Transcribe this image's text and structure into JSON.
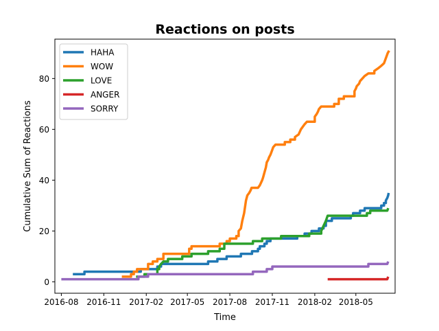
{
  "chart_data": {
    "type": "line",
    "title": "Reactions on posts",
    "xlabel": "Time",
    "ylabel": "Cumulative Sum of Reactions",
    "x_ticks": [
      "2016-08",
      "2016-11",
      "2017-02",
      "2017-05",
      "2017-08",
      "2017-11",
      "2018-02",
      "2018-05"
    ],
    "y_ticks": [
      0,
      20,
      40,
      60,
      80
    ],
    "xlim": [
      "2016-07-18",
      "2018-07-25"
    ],
    "ylim": [
      -4.5,
      95.5
    ],
    "grid": false,
    "legend_position": "top-left",
    "series": [
      {
        "name": "HAHA",
        "color": "#1f77b4",
        "points": [
          [
            "2016-08-26",
            3
          ],
          [
            "2016-09-20",
            3
          ],
          [
            "2016-09-20",
            4
          ],
          [
            "2017-01-20",
            4
          ],
          [
            "2017-01-20",
            5
          ],
          [
            "2017-02-25",
            5
          ],
          [
            "2017-02-25",
            6
          ],
          [
            "2017-03-05",
            6
          ],
          [
            "2017-03-05",
            7
          ],
          [
            "2017-06-15",
            7
          ],
          [
            "2017-06-15",
            8
          ],
          [
            "2017-07-05",
            8
          ],
          [
            "2017-07-05",
            9
          ],
          [
            "2017-07-25",
            9
          ],
          [
            "2017-07-25",
            10
          ],
          [
            "2017-08-25",
            10
          ],
          [
            "2017-08-25",
            11
          ],
          [
            "2017-09-18",
            11
          ],
          [
            "2017-09-18",
            12
          ],
          [
            "2017-10-01",
            12
          ],
          [
            "2017-10-01",
            13
          ],
          [
            "2017-10-05",
            13
          ],
          [
            "2017-10-05",
            14
          ],
          [
            "2017-10-15",
            14
          ],
          [
            "2017-10-15",
            15
          ],
          [
            "2017-10-20",
            15
          ],
          [
            "2017-10-20",
            16
          ],
          [
            "2017-10-28",
            16
          ],
          [
            "2017-10-28",
            17
          ],
          [
            "2017-12-25",
            17
          ],
          [
            "2017-12-25",
            18
          ],
          [
            "2018-01-10",
            18
          ],
          [
            "2018-01-10",
            19
          ],
          [
            "2018-01-25",
            19
          ],
          [
            "2018-01-25",
            20
          ],
          [
            "2018-02-10",
            20
          ],
          [
            "2018-02-10",
            21
          ],
          [
            "2018-02-20",
            21
          ],
          [
            "2018-02-20",
            22
          ],
          [
            "2018-02-25",
            22
          ],
          [
            "2018-02-25",
            24
          ],
          [
            "2018-03-10",
            24
          ],
          [
            "2018-03-10",
            25
          ],
          [
            "2018-04-20",
            25
          ],
          [
            "2018-04-20",
            26
          ],
          [
            "2018-04-25",
            26
          ],
          [
            "2018-04-25",
            27
          ],
          [
            "2018-05-10",
            27
          ],
          [
            "2018-05-10",
            28
          ],
          [
            "2018-05-20",
            28
          ],
          [
            "2018-05-20",
            29
          ],
          [
            "2018-06-25",
            29
          ],
          [
            "2018-06-25",
            30
          ],
          [
            "2018-07-01",
            30
          ],
          [
            "2018-07-01",
            31
          ],
          [
            "2018-07-05",
            31
          ],
          [
            "2018-07-05",
            32
          ],
          [
            "2018-07-08",
            33
          ],
          [
            "2018-07-10",
            34
          ],
          [
            "2018-07-11",
            35
          ]
        ]
      },
      {
        "name": "WOW",
        "color": "#ff7f0e",
        "points": [
          [
            "2016-12-10",
            2
          ],
          [
            "2016-12-30",
            2
          ],
          [
            "2016-12-30",
            3
          ],
          [
            "2017-01-05",
            3
          ],
          [
            "2017-01-05",
            4
          ],
          [
            "2017-01-12",
            4
          ],
          [
            "2017-01-12",
            5
          ],
          [
            "2017-02-05",
            5
          ],
          [
            "2017-02-05",
            7
          ],
          [
            "2017-02-15",
            7
          ],
          [
            "2017-02-15",
            8
          ],
          [
            "2017-02-25",
            8
          ],
          [
            "2017-02-25",
            9
          ],
          [
            "2017-03-10",
            9
          ],
          [
            "2017-03-10",
            11
          ],
          [
            "2017-05-05",
            11
          ],
          [
            "2017-05-05",
            13
          ],
          [
            "2017-05-10",
            13
          ],
          [
            "2017-05-10",
            14
          ],
          [
            "2017-07-10",
            14
          ],
          [
            "2017-07-10",
            15
          ],
          [
            "2017-07-25",
            15
          ],
          [
            "2017-07-25",
            16
          ],
          [
            "2017-08-01",
            16
          ],
          [
            "2017-08-01",
            17
          ],
          [
            "2017-08-15",
            17
          ],
          [
            "2017-08-15",
            18
          ],
          [
            "2017-08-20",
            18
          ],
          [
            "2017-08-20",
            20
          ],
          [
            "2017-08-25",
            21
          ],
          [
            "2017-08-28",
            24
          ],
          [
            "2017-09-01",
            27
          ],
          [
            "2017-09-05",
            32
          ],
          [
            "2017-09-08",
            34
          ],
          [
            "2017-09-12",
            35
          ],
          [
            "2017-09-15",
            36
          ],
          [
            "2017-09-17",
            37
          ],
          [
            "2017-10-01",
            37
          ],
          [
            "2017-10-05",
            38
          ],
          [
            "2017-10-10",
            40
          ],
          [
            "2017-10-12",
            41
          ],
          [
            "2017-10-15",
            43
          ],
          [
            "2017-10-18",
            45
          ],
          [
            "2017-10-20",
            47
          ],
          [
            "2017-10-23",
            48
          ],
          [
            "2017-10-25",
            49
          ],
          [
            "2017-10-28",
            50
          ],
          [
            "2017-11-01",
            52
          ],
          [
            "2017-11-03",
            53
          ],
          [
            "2017-11-08",
            54
          ],
          [
            "2017-11-28",
            54
          ],
          [
            "2017-11-28",
            55
          ],
          [
            "2017-12-10",
            55
          ],
          [
            "2017-12-10",
            56
          ],
          [
            "2017-12-20",
            56
          ],
          [
            "2017-12-20",
            57
          ],
          [
            "2017-12-28",
            58
          ],
          [
            "2018-01-02",
            60
          ],
          [
            "2018-01-10",
            62
          ],
          [
            "2018-01-15",
            63
          ],
          [
            "2018-02-01",
            63
          ],
          [
            "2018-02-01",
            65
          ],
          [
            "2018-02-05",
            66
          ],
          [
            "2018-02-08",
            67
          ],
          [
            "2018-02-10",
            68
          ],
          [
            "2018-02-15",
            69
          ],
          [
            "2018-03-15",
            69
          ],
          [
            "2018-03-15",
            70
          ],
          [
            "2018-03-25",
            70
          ],
          [
            "2018-03-25",
            72
          ],
          [
            "2018-04-05",
            72
          ],
          [
            "2018-04-05",
            73
          ],
          [
            "2018-04-28",
            73
          ],
          [
            "2018-04-28",
            75
          ],
          [
            "2018-05-01",
            76
          ],
          [
            "2018-05-03",
            77
          ],
          [
            "2018-05-08",
            78
          ],
          [
            "2018-05-10",
            79
          ],
          [
            "2018-05-15",
            80
          ],
          [
            "2018-05-20",
            81
          ],
          [
            "2018-05-28",
            82
          ],
          [
            "2018-06-10",
            82
          ],
          [
            "2018-06-10",
            83
          ],
          [
            "2018-06-18",
            84
          ],
          [
            "2018-06-25",
            85
          ],
          [
            "2018-07-01",
            86
          ],
          [
            "2018-07-03",
            87
          ],
          [
            "2018-07-05",
            88
          ],
          [
            "2018-07-07",
            89
          ],
          [
            "2018-07-09",
            90
          ],
          [
            "2018-07-12",
            91
          ]
        ]
      },
      {
        "name": "LOVE",
        "color": "#2ca02c",
        "points": [
          [
            "2017-01-10",
            2
          ],
          [
            "2017-01-28",
            2
          ],
          [
            "2017-01-28",
            3
          ],
          [
            "2017-02-25",
            3
          ],
          [
            "2017-02-25",
            5
          ],
          [
            "2017-03-01",
            5
          ],
          [
            "2017-03-01",
            6
          ],
          [
            "2017-03-05",
            7
          ],
          [
            "2017-03-10",
            8
          ],
          [
            "2017-03-20",
            8
          ],
          [
            "2017-03-20",
            9
          ],
          [
            "2017-04-20",
            9
          ],
          [
            "2017-04-20",
            10
          ],
          [
            "2017-05-10",
            10
          ],
          [
            "2017-05-10",
            11
          ],
          [
            "2017-06-15",
            11
          ],
          [
            "2017-06-15",
            12
          ],
          [
            "2017-07-10",
            12
          ],
          [
            "2017-07-10",
            13
          ],
          [
            "2017-07-20",
            13
          ],
          [
            "2017-07-20",
            15
          ],
          [
            "2017-09-20",
            15
          ],
          [
            "2017-09-20",
            16
          ],
          [
            "2017-10-10",
            16
          ],
          [
            "2017-10-10",
            17
          ],
          [
            "2017-11-20",
            17
          ],
          [
            "2017-11-20",
            18
          ],
          [
            "2018-01-20",
            18
          ],
          [
            "2018-01-20",
            19
          ],
          [
            "2018-02-15",
            19
          ],
          [
            "2018-02-15",
            20
          ],
          [
            "2018-02-20",
            22
          ],
          [
            "2018-02-25",
            24
          ],
          [
            "2018-03-01",
            26
          ],
          [
            "2018-05-25",
            26
          ],
          [
            "2018-05-25",
            27
          ],
          [
            "2018-06-01",
            27
          ],
          [
            "2018-06-01",
            28
          ],
          [
            "2018-07-08",
            28
          ],
          [
            "2018-07-10",
            29
          ]
        ]
      },
      {
        "name": "ANGER",
        "color": "#d62728",
        "points": [
          [
            "2018-03-01",
            1
          ],
          [
            "2018-07-08",
            1
          ],
          [
            "2018-07-10",
            2
          ]
        ]
      },
      {
        "name": "SORRY",
        "color": "#9467bd",
        "points": [
          [
            "2016-08-01",
            1
          ],
          [
            "2017-01-15",
            1
          ],
          [
            "2017-01-15",
            2
          ],
          [
            "2017-02-05",
            2
          ],
          [
            "2017-02-05",
            3
          ],
          [
            "2017-09-20",
            3
          ],
          [
            "2017-09-20",
            4
          ],
          [
            "2017-10-20",
            4
          ],
          [
            "2017-10-20",
            5
          ],
          [
            "2017-11-01",
            5
          ],
          [
            "2017-11-01",
            6
          ],
          [
            "2018-05-28",
            6
          ],
          [
            "2018-05-28",
            7
          ],
          [
            "2018-07-08",
            7
          ],
          [
            "2018-07-10",
            8
          ]
        ]
      }
    ]
  }
}
